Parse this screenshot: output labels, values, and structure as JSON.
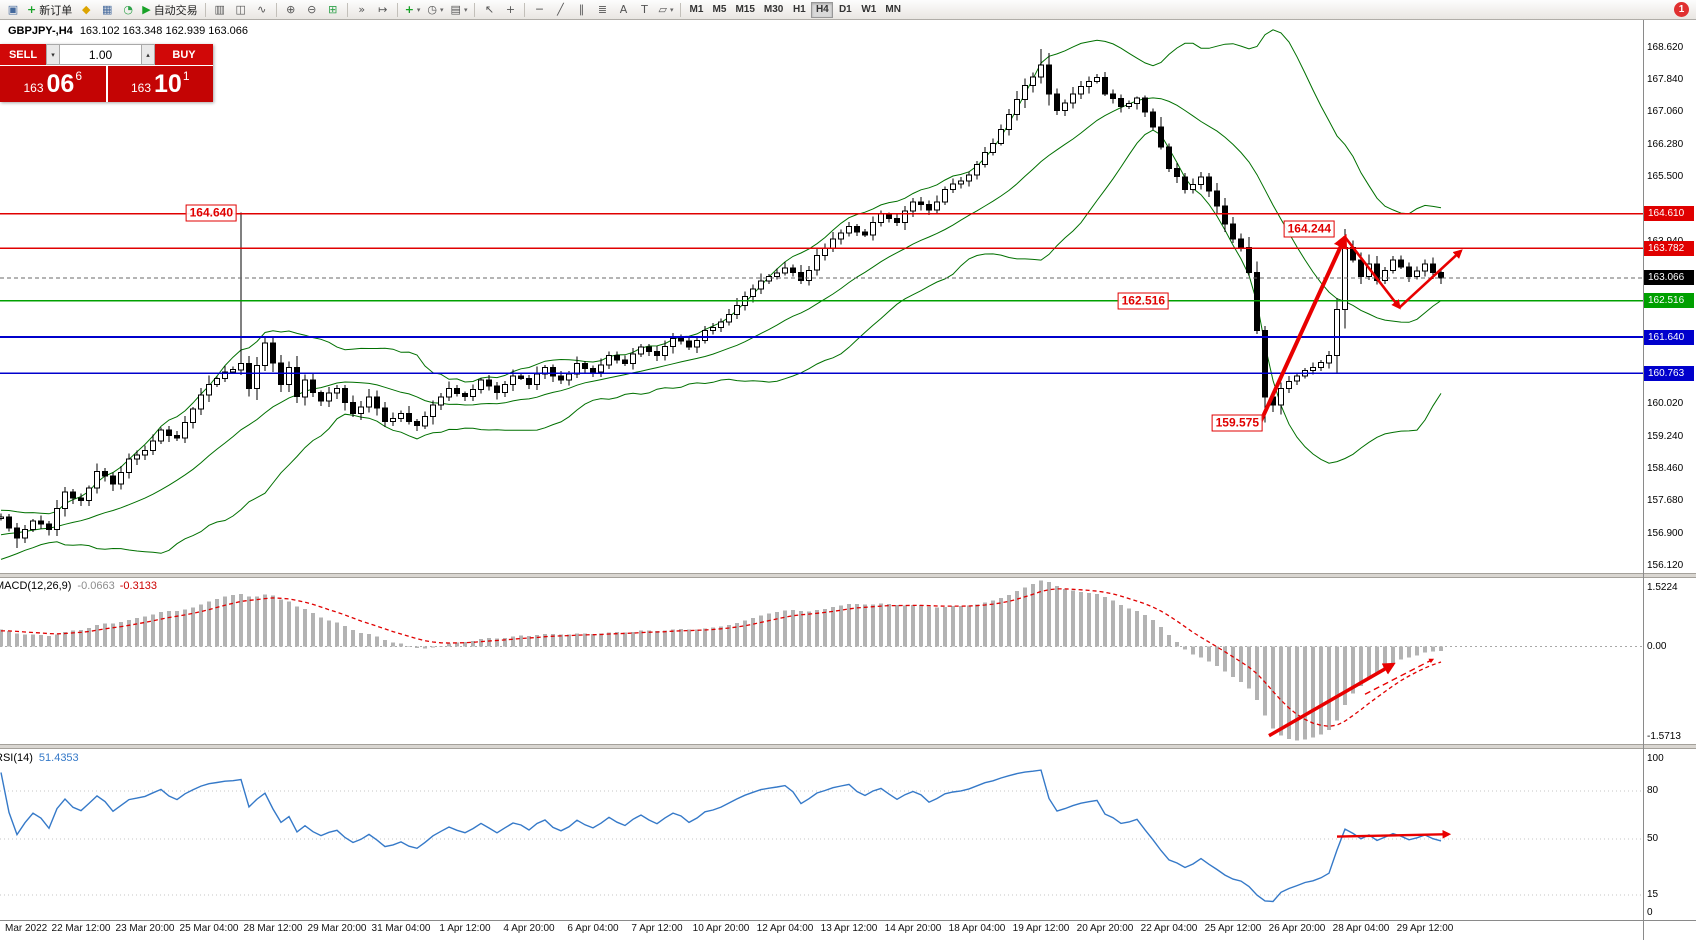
{
  "toolbar": {
    "new_order_label": "新订单",
    "auto_trading_label": "自动交易",
    "timeframes": [
      "M1",
      "M5",
      "M15",
      "M30",
      "H1",
      "H4",
      "D1",
      "W1",
      "MN"
    ],
    "active_timeframe": "H4",
    "notification_count": "1",
    "icons": {
      "window": "▣",
      "new_order": "+",
      "market": "◆",
      "charts": "▦",
      "history": "◔",
      "play": "▶",
      "bar_chart": "▥",
      "candles": "◫",
      "line_chart": "∿",
      "zoom_in": "⊕",
      "zoom_out": "⊖",
      "tile": "⊞",
      "auto_scroll": "»",
      "chart_shift": "↦",
      "indicators": "+",
      "periods": "◷",
      "templates": "▤",
      "cursor": "↖",
      "crosshair": "+",
      "hline": "─",
      "trendline": "╱",
      "channel": "∥",
      "fibonacci": "≣",
      "text": "A",
      "label": "T",
      "shapes": "▱",
      "caret": "▾"
    }
  },
  "chart": {
    "symbol_period": "GBPJPY-,H4",
    "ohlc": "163.102 163.348 162.939 163.066"
  },
  "trade_panel": {
    "sell_label": "SELL",
    "buy_label": "BUY",
    "volume": "1.00",
    "spin_down": "▾",
    "spin_up": "▴",
    "sell_price_main": "163",
    "sell_price_pips": "06",
    "sell_price_point": "6",
    "buy_price_main": "163",
    "buy_price_pips": "10",
    "buy_price_point": "1"
  },
  "chart_data": {
    "type": "candlestick",
    "title": "GBPJPY-,H4",
    "symbol": "GBPJPY",
    "period": "H4",
    "ohlc_current": {
      "open": "163.102",
      "high": "163.348",
      "low": "162.939",
      "close": "163.066"
    },
    "colors": {
      "bull": "#ffffff",
      "bear": "#000000",
      "outline": "#000000",
      "bands": "#007000",
      "histogram": "#b3b3b3",
      "signal": "#e00000",
      "rsi_line": "#3579c8",
      "annotation": "#e80000"
    },
    "price_axis": {
      "range": [
        155.95,
        169.31
      ],
      "labels": [
        "168.620",
        "167.840",
        "167.060",
        "166.280",
        "165.500",
        "163.940",
        "162.380",
        "160.020",
        "159.240",
        "158.460",
        "157.680",
        "156.900",
        "156.120"
      ]
    },
    "level_lines": [
      {
        "label": "164.610",
        "price": 164.61,
        "line_color": "#e00000",
        "chip_color": "#e00000",
        "width": 1.2,
        "dashed": false
      },
      {
        "label": "163.782",
        "price": 163.782,
        "line_color": "#e00000",
        "chip_color": "#e00000",
        "width": 1.2,
        "dashed": false
      },
      {
        "label": "163.066",
        "price": 163.066,
        "line_color": "#6a6a6a",
        "chip_color": "#000000",
        "width": 1,
        "dashed": true
      },
      {
        "label": "162.516",
        "price": 162.516,
        "line_color": "#00a000",
        "chip_color": "#00a000",
        "width": 1.6,
        "dashed": false
      },
      {
        "label": "161.640",
        "price": 161.64,
        "line_color": "#0000cc",
        "chip_color": "#0000cc",
        "width": 1.6,
        "dashed": false
      },
      {
        "label": "160.763",
        "price": 160.763,
        "line_color": "#0000cc",
        "chip_color": "#0000cc",
        "width": 1.6,
        "dashed": false
      }
    ],
    "annotations": [
      {
        "text": "164.640",
        "idx": 29.5,
        "price": 164.64
      },
      {
        "text": "164.244",
        "idx": 166.8,
        "price": 164.244
      },
      {
        "text": "162.516",
        "idx": 146,
        "price": 162.516
      },
      {
        "text": "159.575",
        "idx": 157.8,
        "price": 159.575
      }
    ],
    "time_labels": [
      [
        "Mar 2022",
        0.5
      ],
      [
        "22 Mar 12:00",
        10
      ],
      [
        "23 Mar 20:00",
        18
      ],
      [
        "25 Mar 04:00",
        26
      ],
      [
        "28 Mar 12:00",
        34
      ],
      [
        "29 Mar 20:00",
        42
      ],
      [
        "31 Mar 04:00",
        50
      ],
      [
        "1 Apr 12:00",
        58
      ],
      [
        "4 Apr 20:00",
        66
      ],
      [
        "6 Apr 04:00",
        74
      ],
      [
        "7 Apr 12:00",
        82
      ],
      [
        "10 Apr 20:00",
        90
      ],
      [
        "12 Apr 04:00",
        98
      ],
      [
        "13 Apr 12:00",
        106
      ],
      [
        "14 Apr 20:00",
        114
      ],
      [
        "18 Apr 04:00",
        122
      ],
      [
        "19 Apr 12:00",
        130
      ],
      [
        "20 Apr 20:00",
        138
      ],
      [
        "22 Apr 04:00",
        146
      ],
      [
        "25 Apr 12:00",
        154
      ],
      [
        "26 Apr 20:00",
        162
      ],
      [
        "28 Apr 04:00",
        170
      ],
      [
        "29 Apr 12:00",
        178
      ]
    ],
    "price_path": [
      [
        -30,
        155.9
      ],
      [
        -20,
        156.3
      ],
      [
        -10,
        156.9
      ],
      [
        0,
        157.3
      ],
      [
        2,
        156.8
      ],
      [
        4,
        157.2
      ],
      [
        6,
        157.0
      ],
      [
        8,
        157.9
      ],
      [
        10,
        157.7
      ],
      [
        12,
        158.4
      ],
      [
        14,
        158.1
      ],
      [
        16,
        158.7
      ],
      [
        18,
        158.9
      ],
      [
        20,
        159.4
      ],
      [
        22,
        159.2
      ],
      [
        24,
        159.9
      ],
      [
        26,
        160.5
      ],
      [
        28,
        160.8
      ],
      [
        30,
        161.0
      ],
      [
        31,
        160.4
      ],
      [
        33,
        161.5
      ],
      [
        35,
        160.5
      ],
      [
        36,
        160.9
      ],
      [
        37,
        160.2
      ],
      [
        38,
        160.6
      ],
      [
        40,
        160.1
      ],
      [
        42,
        160.4
      ],
      [
        44,
        159.8
      ],
      [
        46,
        160.2
      ],
      [
        48,
        159.6
      ],
      [
        50,
        159.8
      ],
      [
        52,
        159.5
      ],
      [
        54,
        160.0
      ],
      [
        56,
        160.4
      ],
      [
        58,
        160.2
      ],
      [
        60,
        160.6
      ],
      [
        62,
        160.3
      ],
      [
        64,
        160.7
      ],
      [
        66,
        160.5
      ],
      [
        68,
        160.9
      ],
      [
        70,
        160.6
      ],
      [
        72,
        161.0
      ],
      [
        74,
        160.8
      ],
      [
        76,
        161.2
      ],
      [
        78,
        161.0
      ],
      [
        80,
        161.4
      ],
      [
        82,
        161.2
      ],
      [
        84,
        161.6
      ],
      [
        86,
        161.4
      ],
      [
        88,
        161.8
      ],
      [
        90,
        162.0
      ],
      [
        92,
        162.4
      ],
      [
        94,
        162.8
      ],
      [
        96,
        163.1
      ],
      [
        98,
        163.3
      ],
      [
        100,
        163.0
      ],
      [
        102,
        163.6
      ],
      [
        104,
        164.0
      ],
      [
        106,
        164.3
      ],
      [
        108,
        164.1
      ],
      [
        110,
        164.6
      ],
      [
        112,
        164.4
      ],
      [
        114,
        164.9
      ],
      [
        116,
        164.7
      ],
      [
        118,
        165.2
      ],
      [
        120,
        165.4
      ],
      [
        122,
        165.8
      ],
      [
        124,
        166.3
      ],
      [
        126,
        167.0
      ],
      [
        128,
        167.7
      ],
      [
        130,
        168.2
      ],
      [
        131,
        167.5
      ],
      [
        132,
        167.1
      ],
      [
        134,
        167.5
      ],
      [
        136,
        167.8
      ],
      [
        137,
        167.9
      ],
      [
        138,
        167.5
      ],
      [
        140,
        167.2
      ],
      [
        142,
        167.4
      ],
      [
        144,
        166.7
      ],
      [
        146,
        165.7
      ],
      [
        148,
        165.2
      ],
      [
        150,
        165.5
      ],
      [
        152,
        164.8
      ],
      [
        154,
        164.0
      ],
      [
        155,
        163.8
      ],
      [
        156,
        163.2
      ],
      [
        157,
        161.8
      ],
      [
        158,
        160.2
      ],
      [
        159,
        160.0
      ],
      [
        160,
        160.4
      ],
      [
        162,
        160.7
      ],
      [
        164,
        160.9
      ],
      [
        166,
        161.2
      ],
      [
        167,
        162.3
      ],
      [
        168,
        163.8
      ],
      [
        169,
        163.5
      ],
      [
        170,
        163.1
      ],
      [
        171,
        163.4
      ],
      [
        172,
        163.0
      ],
      [
        174,
        163.5
      ],
      [
        176,
        163.1
      ],
      [
        178,
        163.4
      ],
      [
        180,
        163.066
      ]
    ],
    "spikes": {
      "2": {
        "low": 156.55
      },
      "30": {
        "high": 164.64
      },
      "130": {
        "high": 168.58
      },
      "158": {
        "low": 159.575
      },
      "168": {
        "high": 164.244
      }
    },
    "indicators": {
      "bollinger": {
        "period": 20,
        "deviation": 2
      },
      "macd": {
        "fast": 12,
        "slow": 26,
        "signal": 9
      },
      "rsi": {
        "period": 14
      }
    },
    "macd": {
      "name": "MACD(12,26,9)",
      "value1": "-0.0663",
      "value2": "-0.3133",
      "axis": {
        "max": "1.5224",
        "zero": "0.00",
        "min": "-1.5713"
      }
    },
    "rsi": {
      "name": "RSI(14)",
      "value": "51.4353",
      "axis": [
        "100",
        "80",
        "50",
        "15",
        "0"
      ],
      "levels": [
        80,
        50,
        15
      ]
    },
    "arrows": {
      "main": [
        {
          "from": [
            157.5,
            159.62
          ],
          "to": [
            168,
            164.05
          ],
          "w": 4
        },
        {
          "from": [
            168,
            164.05
          ],
          "to": [
            174.8,
            162.35
          ],
          "w": 2.6
        },
        {
          "from": [
            174.8,
            162.35
          ],
          "to": [
            182.5,
            163.72
          ],
          "w": 2.6
        }
      ],
      "macd": [
        {
          "from": [
            158.5,
            0.95
          ],
          "to": [
            174,
            0.52
          ],
          "w": 3.5,
          "dashed": false
        },
        {
          "from": [
            170.5,
            0.7
          ],
          "to": [
            179,
            0.49
          ],
          "w": 1.4,
          "dashed": true
        }
      ],
      "rsi": [
        {
          "from": [
            167,
            51.5
          ],
          "to": [
            181,
            53
          ],
          "w": 2.4
        }
      ]
    }
  }
}
